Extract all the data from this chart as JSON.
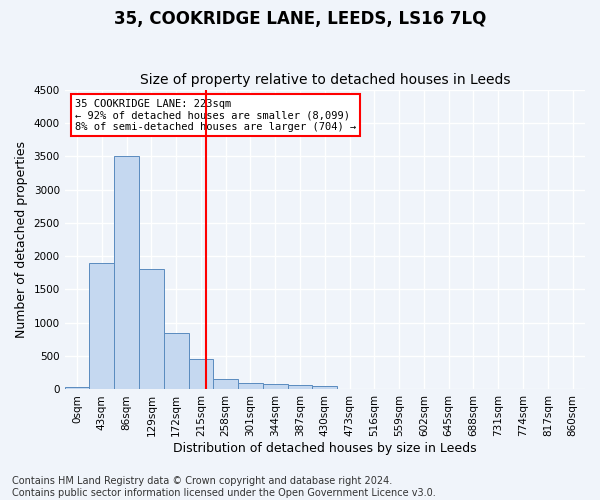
{
  "title": "35, COOKRIDGE LANE, LEEDS, LS16 7LQ",
  "subtitle": "Size of property relative to detached houses in Leeds",
  "xlabel": "Distribution of detached houses by size in Leeds",
  "ylabel": "Number of detached properties",
  "footnote": "Contains HM Land Registry data © Crown copyright and database right 2024.\nContains public sector information licensed under the Open Government Licence v3.0.",
  "bin_labels": [
    "0sqm",
    "43sqm",
    "86sqm",
    "129sqm",
    "172sqm",
    "215sqm",
    "258sqm",
    "301sqm",
    "344sqm",
    "387sqm",
    "430sqm",
    "473sqm",
    "516sqm",
    "559sqm",
    "602sqm",
    "645sqm",
    "688sqm",
    "731sqm",
    "774sqm",
    "817sqm",
    "860sqm"
  ],
  "bar_values": [
    30,
    1900,
    3500,
    1800,
    850,
    450,
    160,
    100,
    75,
    65,
    55,
    0,
    0,
    0,
    0,
    0,
    0,
    0,
    0,
    0,
    0
  ],
  "bar_color": "#c5d8f0",
  "bar_edge_color": "#5a8bbf",
  "vline_x": 223,
  "vline_color": "red",
  "annotation_text": "35 COOKRIDGE LANE: 223sqm\n← 92% of detached houses are smaller (8,099)\n8% of semi-detached houses are larger (704) →",
  "annotation_box_color": "white",
  "annotation_box_edge_color": "red",
  "ylim": [
    0,
    4500
  ],
  "yticks": [
    0,
    500,
    1000,
    1500,
    2000,
    2500,
    3000,
    3500,
    4000,
    4500
  ],
  "background_color": "#f0f4fa",
  "grid_color": "white",
  "title_fontsize": 12,
  "subtitle_fontsize": 10,
  "axis_label_fontsize": 9,
  "tick_fontsize": 7.5,
  "footnote_fontsize": 7
}
